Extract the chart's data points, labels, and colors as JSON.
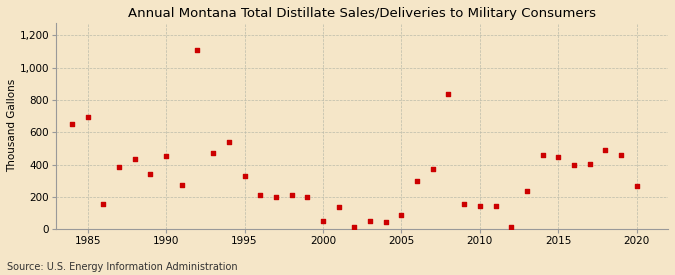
{
  "title": "Annual Montana Total Distillate Sales/Deliveries to Military Consumers",
  "ylabel": "Thousand Gallons",
  "source": "Source: U.S. Energy Information Administration",
  "background_color": "#f5e6c8",
  "plot_bg_color": "#fdf5e6",
  "marker_color": "#cc0000",
  "years": [
    1984,
    1985,
    1986,
    1987,
    1988,
    1989,
    1990,
    1991,
    1992,
    1993,
    1994,
    1995,
    1996,
    1997,
    1998,
    1999,
    2000,
    2001,
    2002,
    2003,
    2004,
    2005,
    2006,
    2007,
    2008,
    2009,
    2010,
    2011,
    2012,
    2013,
    2014,
    2015,
    2016,
    2017,
    2018,
    2019,
    2020
  ],
  "values": [
    650,
    695,
    155,
    385,
    435,
    340,
    455,
    275,
    1110,
    470,
    540,
    330,
    210,
    200,
    210,
    200,
    50,
    135,
    15,
    50,
    45,
    85,
    300,
    375,
    840,
    155,
    145,
    145,
    10,
    235,
    460,
    445,
    400,
    405,
    490,
    460,
    270
  ],
  "xlim": [
    1983,
    2022
  ],
  "ylim": [
    0,
    1280
  ],
  "yticks": [
    0,
    200,
    400,
    600,
    800,
    1000,
    1200
  ],
  "ytick_labels": [
    "0",
    "200",
    "400",
    "600",
    "800",
    "1,000",
    "1,200"
  ],
  "xticks": [
    1985,
    1990,
    1995,
    2000,
    2005,
    2010,
    2015,
    2020
  ],
  "title_fontsize": 9.5,
  "axis_fontsize": 7.5,
  "source_fontsize": 7
}
